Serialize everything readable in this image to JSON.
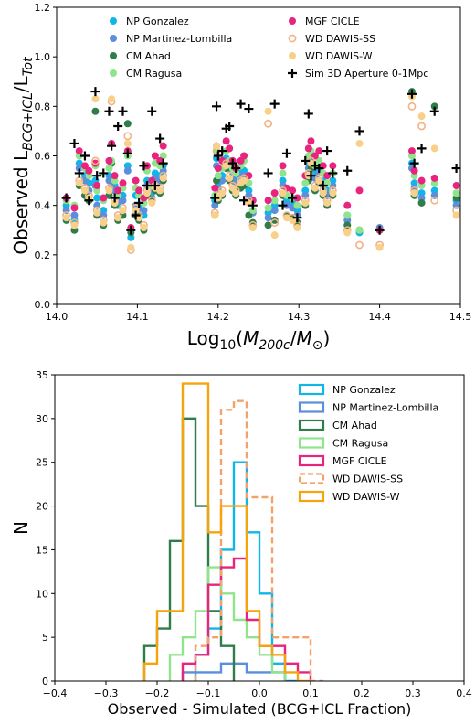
{
  "chart_data": [
    {
      "type": "scatter",
      "title": "",
      "xlabel": "Log10(M200c/M⊙)",
      "ylabel": "Observed L_BCG+ICL/L_Tot",
      "xlim": [
        14.0,
        14.5
      ],
      "ylim": [
        0.0,
        1.2
      ],
      "xticks": [
        14.0,
        14.1,
        14.2,
        14.3,
        14.4,
        14.5
      ],
      "xtick_labels": [
        "14.0",
        "14.1",
        "14.2",
        "14.3",
        "14.4",
        "14.5"
      ],
      "yticks": [
        0.0,
        0.2,
        0.4,
        0.6,
        0.8,
        1.0,
        1.2
      ],
      "ytick_labels": [
        "0.0",
        "0.2",
        "0.4",
        "0.6",
        "0.8",
        "1.0",
        "1.2"
      ],
      "grid": false,
      "legend_position": "top",
      "x": [
        14.012,
        14.022,
        14.028,
        14.035,
        14.04,
        14.048,
        14.05,
        14.058,
        14.065,
        14.068,
        14.072,
        14.076,
        14.082,
        14.088,
        14.092,
        14.098,
        14.102,
        14.108,
        14.112,
        14.118,
        14.122,
        14.128,
        14.132,
        14.196,
        14.198,
        14.2,
        14.205,
        14.21,
        14.214,
        14.218,
        14.222,
        14.228,
        14.232,
        14.238,
        14.243,
        14.262,
        14.27,
        14.28,
        14.285,
        14.292,
        14.298,
        14.308,
        14.312,
        14.315,
        14.32,
        14.325,
        14.33,
        14.335,
        14.342,
        14.36,
        14.375,
        14.4,
        14.44,
        14.443,
        14.452,
        14.468,
        14.495
      ],
      "series": [
        {
          "name": "NP Gonzalez",
          "color": "#11b5e8",
          "marker": "filled-circle",
          "y": [
            0.4,
            0.34,
            0.57,
            0.52,
            0.49,
            0.5,
            0.43,
            0.38,
            0.52,
            0.5,
            0.48,
            0.4,
            0.44,
            0.56,
            0.27,
            0.44,
            0.4,
            0.36,
            0.5,
            0.45,
            0.53,
            0.52,
            0.56,
            0.42,
            0.59,
            0.49,
            0.52,
            0.59,
            0.56,
            0.52,
            0.5,
            0.53,
            0.54,
            0.46,
            0.38,
            0.37,
            0.4,
            0.5,
            0.42,
            0.41,
            0.38,
            0.46,
            0.57,
            0.6,
            0.53,
            0.55,
            0.5,
            0.46,
            0.5,
            0.36,
            0.29,
            0.3,
            0.57,
            0.49,
            0.45,
            0.46,
            0.42
          ]
        },
        {
          "name": "NP Martinez-Lombilla",
          "color": "#5b8edc",
          "marker": "filled-circle",
          "y": [
            0.38,
            0.36,
            0.55,
            0.5,
            0.46,
            0.48,
            0.4,
            0.36,
            0.5,
            0.48,
            0.46,
            0.42,
            0.42,
            0.54,
            0.3,
            0.4,
            0.38,
            0.38,
            0.48,
            0.43,
            0.51,
            0.5,
            0.54,
            0.4,
            0.56,
            0.47,
            0.5,
            0.58,
            0.55,
            0.5,
            0.48,
            0.52,
            0.52,
            0.44,
            0.37,
            0.35,
            0.38,
            0.48,
            0.4,
            0.39,
            0.36,
            0.44,
            0.55,
            0.58,
            0.51,
            0.53,
            0.48,
            0.44,
            0.48,
            0.34,
            0.3,
            0.31,
            0.55,
            0.47,
            0.43,
            0.44,
            0.4
          ]
        },
        {
          "name": "CM Ahad",
          "color": "#2e7d4a",
          "marker": "filled-circle",
          "y": [
            0.34,
            0.3,
            0.48,
            0.44,
            0.42,
            0.78,
            0.36,
            0.32,
            0.44,
            0.57,
            0.4,
            0.34,
            0.36,
            0.73,
            0.29,
            0.36,
            0.34,
            0.3,
            0.44,
            0.42,
            0.46,
            0.45,
            0.5,
            0.36,
            0.5,
            0.42,
            0.44,
            0.55,
            0.5,
            0.46,
            0.44,
            0.47,
            0.48,
            0.36,
            0.33,
            0.32,
            0.34,
            0.44,
            0.36,
            0.35,
            0.33,
            0.4,
            0.5,
            0.55,
            0.46,
            0.49,
            0.44,
            0.4,
            0.44,
            0.32,
            0.3,
            0.3,
            0.86,
            0.44,
            0.41,
            0.8,
            0.43
          ]
        },
        {
          "name": "CM Ragusa",
          "color": "#90e58c",
          "marker": "filled-circle",
          "y": [
            0.42,
            0.4,
            0.6,
            0.55,
            0.52,
            0.56,
            0.46,
            0.42,
            0.55,
            0.58,
            0.5,
            0.44,
            0.47,
            0.6,
            0.31,
            0.47,
            0.44,
            0.41,
            0.54,
            0.48,
            0.57,
            0.56,
            0.6,
            0.44,
            0.62,
            0.52,
            0.55,
            0.62,
            0.58,
            0.55,
            0.53,
            0.56,
            0.58,
            0.49,
            0.38,
            0.39,
            0.42,
            0.53,
            0.44,
            0.43,
            0.4,
            0.49,
            0.6,
            0.62,
            0.56,
            0.58,
            0.53,
            0.49,
            0.53,
            0.36,
            0.3,
            0.3,
            0.6,
            0.52,
            0.48,
            0.49,
            0.45
          ]
        },
        {
          "name": "MGF CICLE",
          "color": "#e8247e",
          "marker": "filled-circle",
          "y": [
            0.43,
            0.39,
            0.62,
            0.56,
            0.54,
            0.57,
            0.48,
            0.43,
            0.58,
            0.65,
            0.52,
            0.46,
            0.49,
            0.62,
            0.31,
            0.5,
            0.46,
            0.43,
            0.56,
            0.5,
            0.6,
            0.58,
            0.64,
            0.47,
            0.64,
            0.55,
            0.58,
            0.66,
            0.63,
            0.58,
            0.55,
            0.58,
            0.6,
            0.52,
            0.42,
            0.42,
            0.45,
            0.56,
            0.47,
            0.46,
            0.43,
            0.52,
            0.63,
            0.66,
            0.6,
            0.62,
            0.56,
            0.52,
            0.56,
            0.4,
            0.46,
            0.3,
            0.62,
            0.54,
            0.5,
            0.51,
            0.48
          ]
        },
        {
          "name": "WD DAWIS-SS",
          "color": "#f4b183",
          "marker": "open-circle",
          "y": [
            0.36,
            0.33,
            0.5,
            0.47,
            0.44,
            0.58,
            0.38,
            0.34,
            0.47,
            0.82,
            0.42,
            0.36,
            0.39,
            0.68,
            0.22,
            0.39,
            0.36,
            0.32,
            0.46,
            0.42,
            0.48,
            0.47,
            0.52,
            0.37,
            0.62,
            0.44,
            0.46,
            0.57,
            0.52,
            0.48,
            0.46,
            0.5,
            0.51,
            0.42,
            0.32,
            0.73,
            0.33,
            0.46,
            0.36,
            0.35,
            0.32,
            0.42,
            0.53,
            0.58,
            0.48,
            0.51,
            0.46,
            0.42,
            0.46,
            0.3,
            0.24,
            0.24,
            0.8,
            0.46,
            0.72,
            0.42,
            0.38
          ]
        },
        {
          "name": "WD DAWIS-W",
          "color": "#f8d08a",
          "marker": "filled-circle",
          "y": [
            0.35,
            0.32,
            0.49,
            0.46,
            0.43,
            0.83,
            0.37,
            0.33,
            0.46,
            0.83,
            0.41,
            0.35,
            0.38,
            0.65,
            0.23,
            0.38,
            0.35,
            0.31,
            0.45,
            0.41,
            0.47,
            0.46,
            0.51,
            0.36,
            0.64,
            0.43,
            0.45,
            0.56,
            0.51,
            0.47,
            0.45,
            0.49,
            0.5,
            0.41,
            0.31,
            0.78,
            0.28,
            0.45,
            0.35,
            0.34,
            0.31,
            0.41,
            0.52,
            0.57,
            0.47,
            0.5,
            0.45,
            0.41,
            0.45,
            0.29,
            0.65,
            0.23,
            0.84,
            0.45,
            0.76,
            0.63,
            0.36
          ]
        },
        {
          "name": "Sim 3D Aperture 0-1Mpc",
          "color": "#000000",
          "marker": "plus",
          "y": [
            0.43,
            0.65,
            0.53,
            0.6,
            0.42,
            0.86,
            0.52,
            0.53,
            0.78,
            0.64,
            0.43,
            0.72,
            0.78,
            0.61,
            0.3,
            0.36,
            0.41,
            0.56,
            0.48,
            0.78,
            0.48,
            0.67,
            0.57,
            0.43,
            0.8,
            0.6,
            0.62,
            0.71,
            0.72,
            0.57,
            0.55,
            0.81,
            0.42,
            0.79,
            0.4,
            0.53,
            0.81,
            0.4,
            0.61,
            0.43,
            0.35,
            0.58,
            0.77,
            0.52,
            0.56,
            0.55,
            0.48,
            0.62,
            0.53,
            0.54,
            0.7,
            0.3,
            0.85,
            0.57,
            0.63,
            0.78,
            0.55
          ]
        }
      ]
    },
    {
      "type": "histogram",
      "title": "",
      "xlabel": "Observed - Simulated (BCG+ICL Fraction)",
      "ylabel": "N",
      "xlim": [
        -0.4,
        0.4
      ],
      "ylim": [
        0,
        35
      ],
      "bin_width": 0.025,
      "xticks": [
        -0.4,
        -0.3,
        -0.2,
        -0.1,
        0.0,
        0.1,
        0.2,
        0.3,
        0.4
      ],
      "xtick_labels": [
        "−0.4",
        "−0.3",
        "−0.2",
        "−0.1",
        "0.0",
        "0.1",
        "0.2",
        "0.3",
        "0.4"
      ],
      "yticks": [
        0,
        5,
        10,
        15,
        20,
        25,
        30,
        35
      ],
      "ytick_labels": [
        "0",
        "5",
        "10",
        "15",
        "20",
        "25",
        "30",
        "35"
      ],
      "grid": false,
      "legend_position": "top-right",
      "series": [
        {
          "name": "NP Gonzalez",
          "color": "#11b5e8",
          "style": "solid",
          "bin_start": -0.125,
          "counts": [
            3,
            6,
            15,
            25,
            17,
            10,
            2,
            0
          ]
        },
        {
          "name": "NP Martinez-Lombilla",
          "color": "#5b8edc",
          "style": "solid",
          "bin_start": -0.15,
          "counts": [
            1,
            1,
            1,
            2,
            2,
            1,
            1,
            1
          ]
        },
        {
          "name": "CM Ahad",
          "color": "#2e7d4a",
          "style": "solid",
          "bin_start": -0.225,
          "counts": [
            4,
            6,
            16,
            30,
            20,
            8,
            4
          ]
        },
        {
          "name": "CM Ragusa",
          "color": "#90e58c",
          "style": "solid",
          "bin_start": -0.175,
          "counts": [
            3,
            5,
            8,
            13,
            10,
            7,
            5,
            3,
            1
          ]
        },
        {
          "name": "MGF CICLE",
          "color": "#e8247e",
          "style": "solid",
          "bin_start": -0.15,
          "counts": [
            2,
            3,
            11,
            13,
            14,
            7,
            4,
            4,
            2,
            1
          ]
        },
        {
          "name": "WD DAWIS-SS",
          "color": "#f4a26a",
          "style": "dashed",
          "bin_start": -0.125,
          "counts": [
            4,
            5,
            31,
            32,
            21,
            21,
            5,
            5,
            5,
            0
          ]
        },
        {
          "name": "WD DAWIS-W",
          "color": "#f5a40c",
          "style": "solid",
          "bin_start": -0.225,
          "counts": [
            2,
            8,
            8,
            34,
            34,
            17,
            20,
            20,
            8,
            4,
            3,
            1,
            0
          ]
        }
      ]
    }
  ]
}
